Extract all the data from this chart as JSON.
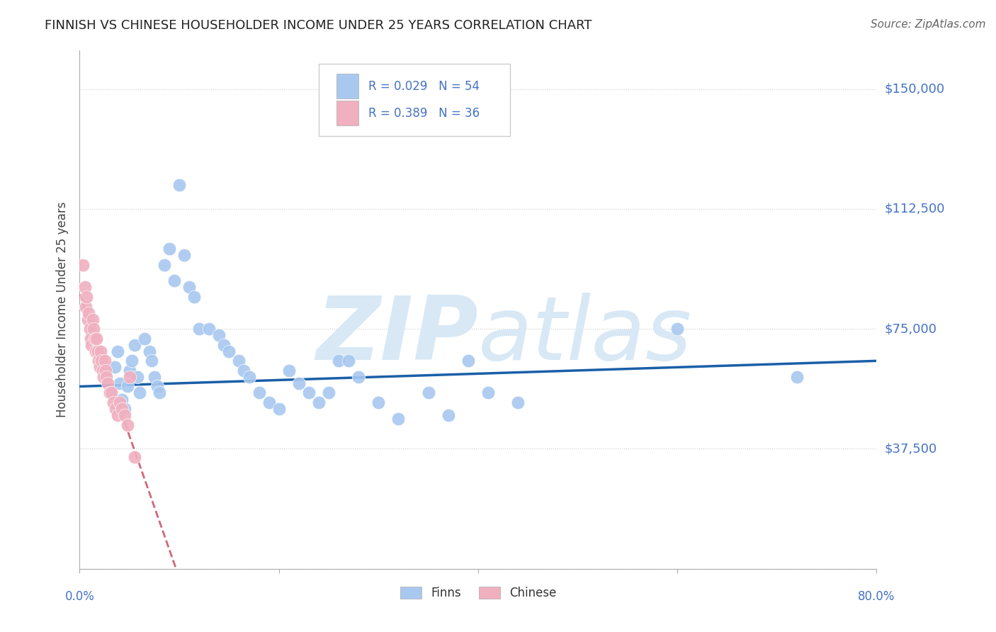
{
  "title": "FINNISH VS CHINESE HOUSEHOLDER INCOME UNDER 25 YEARS CORRELATION CHART",
  "source": "Source: ZipAtlas.com",
  "ylabel": "Householder Income Under 25 years",
  "xlim": [
    0.0,
    0.8
  ],
  "ylim": [
    0,
    162000
  ],
  "yticks": [
    0,
    37500,
    75000,
    112500,
    150000
  ],
  "xticks": [
    0.0,
    0.2,
    0.4,
    0.6,
    0.8
  ],
  "finns_R": 0.029,
  "finns_N": 54,
  "chinese_R": 0.389,
  "chinese_N": 36,
  "finns_color": "#a8c8f0",
  "finns_edge": "#7baad8",
  "chinese_color": "#f0b0c0",
  "chinese_edge": "#d88898",
  "trend_finns_color": "#1a5fa8",
  "trend_chinese_color": "#d06878",
  "watermark_color": "#d8e8f5",
  "finns_x": [
    0.025,
    0.03,
    0.035,
    0.038,
    0.04,
    0.042,
    0.045,
    0.048,
    0.05,
    0.052,
    0.055,
    0.058,
    0.06,
    0.065,
    0.07,
    0.072,
    0.075,
    0.078,
    0.08,
    0.085,
    0.09,
    0.095,
    0.1,
    0.105,
    0.11,
    0.115,
    0.12,
    0.13,
    0.14,
    0.145,
    0.15,
    0.16,
    0.165,
    0.17,
    0.18,
    0.19,
    0.2,
    0.21,
    0.22,
    0.23,
    0.24,
    0.25,
    0.26,
    0.27,
    0.28,
    0.3,
    0.32,
    0.35,
    0.37,
    0.39,
    0.41,
    0.44,
    0.6,
    0.72
  ],
  "finns_y": [
    60000,
    55000,
    63000,
    68000,
    58000,
    53000,
    50000,
    57000,
    62000,
    65000,
    70000,
    60000,
    55000,
    72000,
    68000,
    65000,
    60000,
    57000,
    55000,
    95000,
    100000,
    90000,
    120000,
    98000,
    88000,
    85000,
    75000,
    75000,
    73000,
    70000,
    68000,
    65000,
    62000,
    60000,
    55000,
    52000,
    50000,
    62000,
    58000,
    55000,
    52000,
    55000,
    65000,
    65000,
    60000,
    52000,
    47000,
    55000,
    48000,
    65000,
    55000,
    52000,
    75000,
    60000
  ],
  "chinese_x": [
    0.003,
    0.005,
    0.006,
    0.007,
    0.008,
    0.009,
    0.01,
    0.011,
    0.012,
    0.013,
    0.014,
    0.015,
    0.016,
    0.017,
    0.018,
    0.019,
    0.02,
    0.021,
    0.022,
    0.023,
    0.024,
    0.025,
    0.026,
    0.027,
    0.028,
    0.03,
    0.032,
    0.034,
    0.036,
    0.038,
    0.04,
    0.042,
    0.045,
    0.048,
    0.05,
    0.055
  ],
  "chinese_y": [
    95000,
    88000,
    82000,
    85000,
    78000,
    80000,
    75000,
    72000,
    70000,
    78000,
    75000,
    72000,
    68000,
    72000,
    68000,
    65000,
    63000,
    68000,
    65000,
    62000,
    60000,
    65000,
    62000,
    60000,
    58000,
    55000,
    55000,
    52000,
    50000,
    48000,
    52000,
    50000,
    48000,
    45000,
    60000,
    35000
  ]
}
